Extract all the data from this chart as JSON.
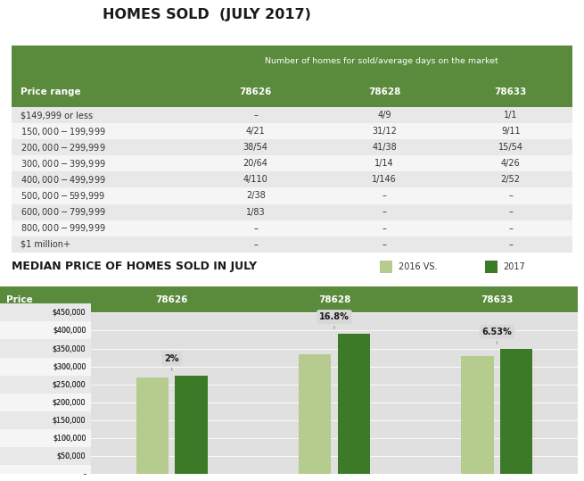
{
  "title_table": "HOMES SOLD  (JULY 2017)",
  "title_chart": "MEDIAN PRICE OF HOMES SOLD IN JULY",
  "table_header_bg": "#5a8a3c",
  "table_header_text": "#ffffff",
  "table_subheader": "Number of homes for sold/average days on the market",
  "col_headers": [
    "Price range",
    "78626",
    "78628",
    "78633"
  ],
  "rows": [
    [
      "$149,999 or less",
      "–",
      "4/9",
      "1/1"
    ],
    [
      "$150,000-$199,999",
      "4/21",
      "31/12",
      "9/11"
    ],
    [
      "$200,000-$299,999",
      "38/54",
      "41/38",
      "15/54"
    ],
    [
      "$300,000-$399,999",
      "20/64",
      "1/14",
      "4/26"
    ],
    [
      "$400,000-$499,999",
      "4/110",
      "1/146",
      "2/52"
    ],
    [
      "$500,000-$599,999",
      "2/38",
      "–",
      "–"
    ],
    [
      "$600,000-$799,999",
      "1/83",
      "–",
      "–"
    ],
    [
      "$800,000-$999,999",
      "–",
      "–",
      "–"
    ],
    [
      "$1 million+",
      "–",
      "–",
      "–"
    ]
  ],
  "bar_col_headers": [
    "Price",
    "78626",
    "78628",
    "78633"
  ],
  "bar_header_bg": "#5a8a3c",
  "bar_header_text": "#ffffff",
  "y_labels": [
    "$450,000",
    "$400,000",
    "$350,000",
    "$300,000",
    "$250,000",
    "$200,000",
    "$150,000",
    "$100,000",
    "$50,000",
    "-"
  ],
  "y_ticks": [
    450000,
    400000,
    350000,
    300000,
    250000,
    200000,
    150000,
    100000,
    50000,
    0
  ],
  "zip_codes": [
    "78626",
    "78628",
    "78633"
  ],
  "values_2016": [
    270000,
    335000,
    328000
  ],
  "values_2017": [
    275400,
    391300,
    349400
  ],
  "pct_changes": [
    "2%",
    "16.8%",
    "6.53%"
  ],
  "color_2016": "#b5cc8e",
  "color_2017": "#3d7a27",
  "legend_2016": "2016",
  "legend_2017": "2017",
  "legend_vs": "2016 VS.",
  "bg_color": "#ffffff",
  "row_alt_color": "#e8e8e8",
  "row_color": "#f5f5f5",
  "chart_bg_color": "#e0e0e0",
  "fig_width": 6.55,
  "fig_height": 5.39,
  "fig_dpi": 100
}
